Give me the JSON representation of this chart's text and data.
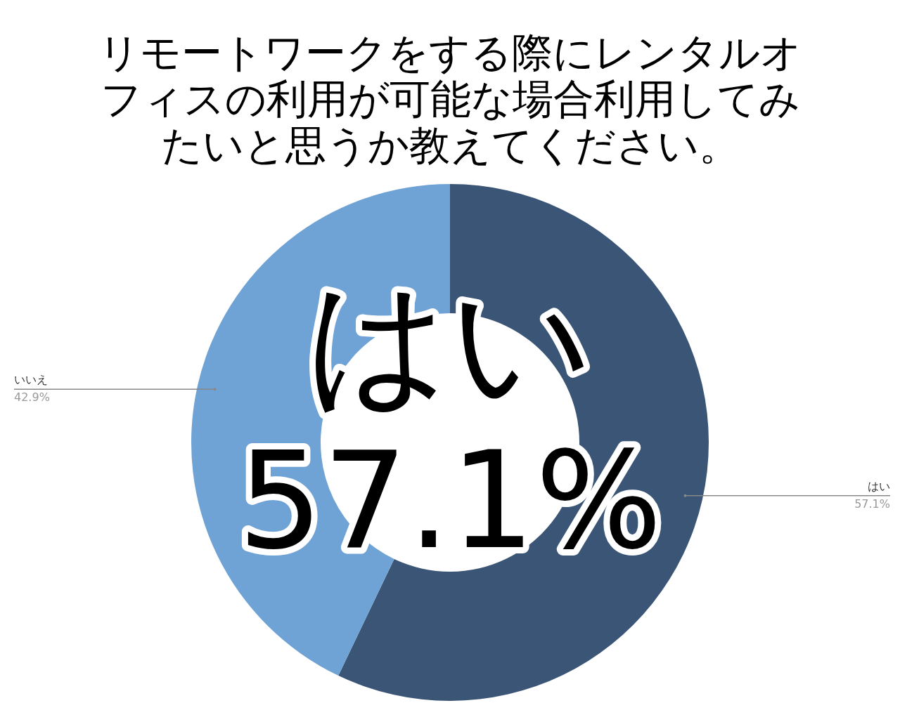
{
  "chart_data": {
    "type": "donut",
    "title": "リモートワークをする際にレンタルオフィスの利用が可能な場合利用してみたいと思うか教えてください。",
    "categories": [
      "はい",
      "いいえ"
    ],
    "values": [
      57.1,
      42.9
    ],
    "colors": [
      "#3a5576",
      "#6fa3d6"
    ],
    "value_labels": [
      "57.1%",
      "42.9%"
    ],
    "legend": false,
    "annotations": [
      "はい",
      "57.1%"
    ]
  }
}
